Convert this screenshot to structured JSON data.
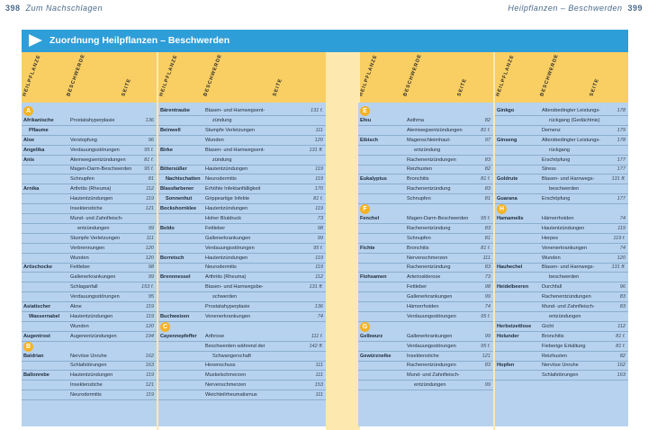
{
  "header": {
    "left_page": "398",
    "left_title": "Zum Nachschlagen",
    "right_page": "399",
    "right_title": "Heilpflanzen – Beschwerden"
  },
  "title": "Zuordnung Heilpflanzen – Beschwerden",
  "col_headers": [
    "Heilpflanze",
    "Beschwerde",
    "Seite"
  ],
  "colors": {
    "title_bg": "#2e9ed9",
    "header_band": "#f9cf63",
    "table_bg": "#b7d2ee",
    "letter_badge": "#f4b325"
  },
  "columns": [
    {
      "items": [
        {
          "letter": "A"
        },
        {
          "n": "Afrikanische",
          "c": "Prostatahyperplasie",
          "p": "136"
        },
        {
          "n": "Pflaume",
          "sub": true
        },
        {
          "n": "Aloe",
          "c": "Verstopfung",
          "p": "96"
        },
        {
          "n": "Angelika",
          "c": "Verdauungsstörungen",
          "p": "95 f."
        },
        {
          "n": "Anis",
          "c": "Atemwegsentzündungen",
          "p": "81 f."
        },
        {
          "c": "Magen-Darm-Beschwerden",
          "p": "95 f."
        },
        {
          "c": "Schnupfen",
          "p": "81"
        },
        {
          "n": "Arnika",
          "c": "Arthritis (Rheuma)",
          "p": "112"
        },
        {
          "c": "Hautentzündungen",
          "p": "119"
        },
        {
          "c": "Insektenstiche",
          "p": "121"
        },
        {
          "c": "Mund- und Zahnfleisch-"
        },
        {
          "c": "entzündungen",
          "p": "99",
          "indent": true
        },
        {
          "c": "Stumpfe Verletzungen",
          "p": "111"
        },
        {
          "c": "Verbrennungen",
          "p": "120"
        },
        {
          "c": "Wunden",
          "p": "120"
        },
        {
          "n": "Artischocke",
          "c": "Fettleber",
          "p": "98"
        },
        {
          "c": "Gallenerkrankungen",
          "p": "99"
        },
        {
          "c": "Schlaganfall",
          "p": "153 f."
        },
        {
          "c": "Verdauungsstörungen",
          "p": "95"
        },
        {
          "n": "Asiatischer",
          "c": "Akne",
          "p": "119"
        },
        {
          "n": "Wassernabel",
          "sub": true,
          "c": "Hautentzündungen",
          "p": "119"
        },
        {
          "c": "Wunden",
          "p": "120"
        },
        {
          "n": "Augentrost",
          "c": "Augenentzündungen",
          "p": "194"
        },
        {
          "letter": "B"
        },
        {
          "n": "Baldrian",
          "c": "Nervöse Unruhe",
          "p": "162"
        },
        {
          "c": "Schlafstörungen",
          "p": "163"
        },
        {
          "n": "Ballonrebe",
          "c": "Hautentzündungen",
          "p": "119"
        },
        {
          "c": "Insektenstiche",
          "p": "121"
        },
        {
          "c": "Neurodermitis",
          "p": "119"
        }
      ]
    },
    {
      "items": [
        {
          "n": "Bärentraube",
          "c": "Blasen- und Harnwegsent-",
          "p": "131 f."
        },
        {
          "c": "zündung",
          "indent": true
        },
        {
          "n": "Beinwell",
          "c": "Stumpfe Verletzungen",
          "p": "111"
        },
        {
          "c": "Wunden",
          "p": "120"
        },
        {
          "n": "Birke",
          "c": "Blasen- und Harnwegsent-",
          "p": "131 ff."
        },
        {
          "c": "zündung",
          "indent": true
        },
        {
          "n": "Bittersüßer",
          "c": "Hautentzündungen",
          "p": "119"
        },
        {
          "n": "Nachtschatten",
          "sub": true,
          "c": "Neurodermitis",
          "p": "119"
        },
        {
          "n": "Blassfarbener",
          "c": "Erhöhte Infektanfälligkeit",
          "p": "170"
        },
        {
          "n": "Sonnenhut",
          "sub": true,
          "c": "Grippeartige Infekte",
          "p": "81 f."
        },
        {
          "n": "Bockshornklee",
          "c": "Hautentzündungen",
          "p": "119"
        },
        {
          "c": "Hoher Blutdruck",
          "p": "73"
        },
        {
          "n": "Boldo",
          "c": "Fettleber",
          "p": "98"
        },
        {
          "c": "Gallenerkrankungen",
          "p": "99"
        },
        {
          "c": "Verdauungsstörungen",
          "p": "95 f."
        },
        {
          "n": "Borretsch",
          "c": "Hautentzündungen",
          "p": "119"
        },
        {
          "c": "Neurodermitis",
          "p": "119"
        },
        {
          "n": "Brennnessel",
          "c": "Arthritis (Rheuma)",
          "p": "112"
        },
        {
          "c": "Blasen- und Harnwegsbe-",
          "p": "131 ff."
        },
        {
          "c": "schwerden",
          "indent": true
        },
        {
          "c": "Prostatahyperplasie",
          "p": "136"
        },
        {
          "n": "Buchweizen",
          "c": "Venenerkrankungen",
          "p": "74"
        },
        {
          "letter": "C"
        },
        {
          "n": "Cayennepfeffer",
          "c": "Arthrose",
          "p": "111 f."
        },
        {
          "c": "Beschwerden während der",
          "p": "142 ff."
        },
        {
          "c": "Schwangerschaft",
          "indent": true
        },
        {
          "c": "Hexenschuss",
          "p": "111"
        },
        {
          "c": "Muskelschmerzen",
          "p": "111"
        },
        {
          "c": "Nervenschmerzen",
          "p": "153"
        },
        {
          "c": "Weichteilrheumatismus",
          "p": "111"
        }
      ]
    },
    {
      "items": [
        {
          "letter": "E"
        },
        {
          "n": "Efeu",
          "c": "Asthma",
          "p": "82"
        },
        {
          "c": "Atemwegsentzündungen",
          "p": "81 f."
        },
        {
          "n": "Eibisch",
          "c": "Magenschleimhaut-",
          "p": "97"
        },
        {
          "c": "entzündung",
          "indent": true
        },
        {
          "c": "Rachenentzündungen",
          "p": "83"
        },
        {
          "c": "Reizhusten",
          "p": "82"
        },
        {
          "n": "Eukalyptus",
          "c": "Bronchitis",
          "p": "81 f."
        },
        {
          "c": "Rachenentzündung",
          "p": "83"
        },
        {
          "c": "Schnupfen",
          "p": "81"
        },
        {
          "letter": "F"
        },
        {
          "n": "Fenchel",
          "c": "Magen-Darm-Beschwerden",
          "p": "95 f."
        },
        {
          "c": "Rachenentzündung",
          "p": "83"
        },
        {
          "c": "Schnupfen",
          "p": "81"
        },
        {
          "n": "Fichte",
          "c": "Bronchitis",
          "p": "81 f."
        },
        {
          "c": "Nervenschmerzen",
          "p": "111"
        },
        {
          "c": "Rachenentzündung",
          "p": "83"
        },
        {
          "n": "Flohsamen",
          "c": "Arteriosklerose",
          "p": "73"
        },
        {
          "c": "Fettleber",
          "p": "98"
        },
        {
          "c": "Gallenerkrankungen",
          "p": "99"
        },
        {
          "c": "Hämorrhoiden",
          "p": "74"
        },
        {
          "c": "Verdauungsstörungen",
          "p": "95 f."
        },
        {
          "letter": "G"
        },
        {
          "n": "Gelbwurz",
          "c": "Gallenerkrankungen",
          "p": "99"
        },
        {
          "c": "Verdauungsstörungen",
          "p": "95 f."
        },
        {
          "n": "Gewürznelke",
          "c": "Insektenstiche",
          "p": "121"
        },
        {
          "c": "Rachenentzündungen",
          "p": "83"
        },
        {
          "c": "Mund- und Zahnfleisch-"
        },
        {
          "c": "entzündungen",
          "p": "99",
          "indent": true
        }
      ]
    },
    {
      "items": [
        {
          "n": "Ginkgo",
          "c": "Altersbedingter Leistungs-",
          "p": "178"
        },
        {
          "c": "rückgang (Gedächtnis)",
          "indent": true
        },
        {
          "c": "Demenz",
          "p": "179"
        },
        {
          "n": "Ginseng",
          "c": "Altersbedingter Leistungs-",
          "p": "178"
        },
        {
          "c": "rückgang",
          "indent": true
        },
        {
          "c": "Erschöpfung",
          "p": "177"
        },
        {
          "c": "Stress",
          "p": "177"
        },
        {
          "n": "Goldrute",
          "c": "Blasen- und Harnwegs-",
          "p": "131 ff."
        },
        {
          "c": "beschwerden",
          "indent": true
        },
        {
          "n": "Guarana",
          "c": "Erschöpfung",
          "p": "177"
        },
        {
          "letter": "H"
        },
        {
          "n": "Hamamelis",
          "c": "Hämorrhoiden",
          "p": "74"
        },
        {
          "c": "Hautentzündungen",
          "p": "119"
        },
        {
          "c": "Herpes",
          "p": "119 f."
        },
        {
          "c": "Venenerkrankungen",
          "p": "74"
        },
        {
          "c": "Wunden",
          "p": "120"
        },
        {
          "n": "Hauhechel",
          "c": "Blasen- und Harnwegs-",
          "p": "131 ff."
        },
        {
          "c": "beschwerden",
          "indent": true
        },
        {
          "n": "Heidelbeeren",
          "c": "Durchfall",
          "p": "96"
        },
        {
          "c": "Rachenentzündungen",
          "p": "83"
        },
        {
          "c": "Mund- und Zahnfleisch-",
          "p": "83"
        },
        {
          "c": "entzündungen",
          "indent": true
        },
        {
          "n": "Herbstzeitlose",
          "c": "Gicht",
          "p": "112"
        },
        {
          "n": "Holunder",
          "c": "Bronchitis",
          "p": "81 f."
        },
        {
          "c": "Fieberige Erkältung",
          "p": "81 f."
        },
        {
          "c": "Reizhusten",
          "p": "82"
        },
        {
          "n": "Hopfen",
          "c": "Nervöse Unruhe",
          "p": "162"
        },
        {
          "c": "Schlafstörungen",
          "p": "163"
        }
      ]
    }
  ]
}
